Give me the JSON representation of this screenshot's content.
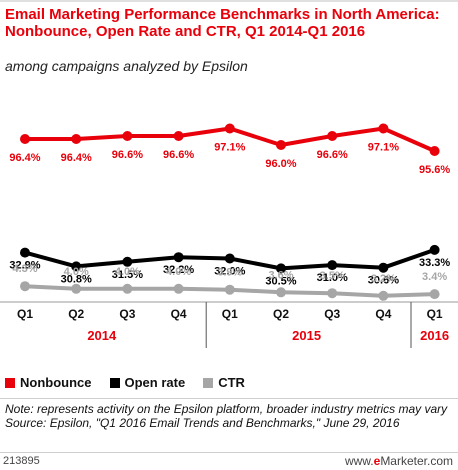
{
  "title": "Email Marketing Performance Benchmarks in North America: Nonbounce, Open Rate and CTR, Q1 2014-Q1 2016",
  "subtitle": "among campaigns analyzed by Epsilon",
  "legend": {
    "nonbounce": "Nonbounce",
    "open_rate": "Open rate",
    "ctr": "CTR"
  },
  "notes": {
    "note": "Note: represents activity on the Epsilon platform, broader industry metrics may vary",
    "source": "Source: Epsilon, \"Q1 2016 Email Trends and Benchmarks,\" June 29, 2016"
  },
  "footer": {
    "id": "213895",
    "brand_prefix": "www.",
    "brand_e": "e",
    "brand_rest": "Marketer.com"
  },
  "colors": {
    "nonbounce": "#e8000b",
    "open_rate": "#000000",
    "ctr": "#a6a6a6"
  },
  "chart_data": {
    "type": "line",
    "categories": [
      "Q1",
      "Q2",
      "Q3",
      "Q4",
      "Q1",
      "Q2",
      "Q3",
      "Q4",
      "Q1"
    ],
    "years": [
      {
        "label": "2014",
        "start": 0,
        "end": 3
      },
      {
        "label": "2015",
        "start": 4,
        "end": 7
      },
      {
        "label": "2016",
        "start": 8,
        "end": 8
      }
    ],
    "series": [
      {
        "name": "Nonbounce",
        "values": [
          96.4,
          96.4,
          96.6,
          96.6,
          97.1,
          96.0,
          96.6,
          97.1,
          95.6
        ],
        "labels": [
          "96.4%",
          "96.4%",
          "96.6%",
          "96.6%",
          "97.1%",
          "96.0%",
          "96.6%",
          "97.1%",
          "95.6%"
        ]
      },
      {
        "name": "Open rate",
        "values": [
          32.9,
          30.8,
          31.5,
          32.2,
          32.0,
          30.5,
          31.0,
          30.6,
          33.3
        ],
        "labels": [
          "32.9%",
          "30.8%",
          "31.5%",
          "32.2%",
          "32.0%",
          "30.5%",
          "31.0%",
          "30.6%",
          "33.3%"
        ]
      },
      {
        "name": "CTR",
        "values": [
          4.3,
          4.0,
          4.0,
          4.0,
          3.9,
          3.6,
          3.5,
          3.2,
          3.4
        ],
        "labels": [
          "4.3%",
          "4.0%",
          "4.0%",
          "4.0%",
          "3.9%",
          "3.6%",
          "3.5%",
          "3.2%",
          "3.4%"
        ]
      }
    ],
    "grid": false,
    "legend_position": "bottom-left"
  }
}
